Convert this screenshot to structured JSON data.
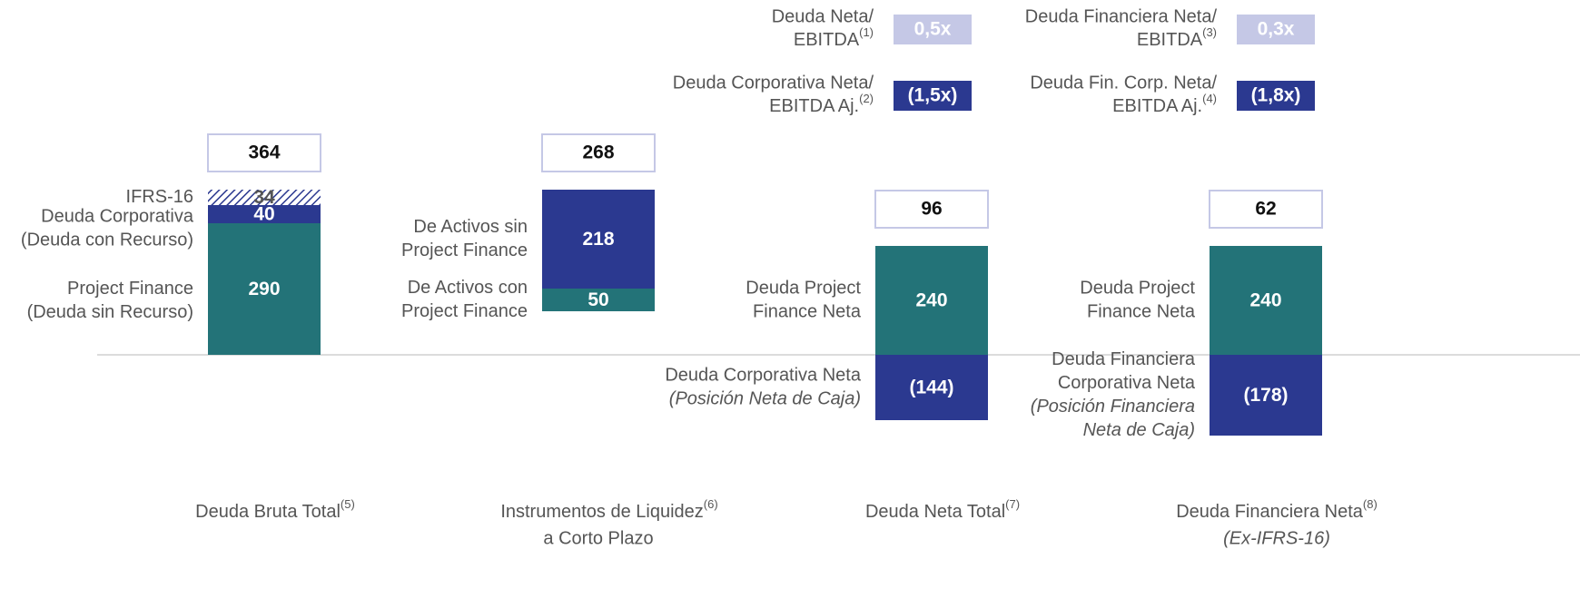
{
  "chart_data": {
    "type": "stacked_bar",
    "ratios": [
      {
        "label": [
          "Deuda Neta/",
          "EBITDA"
        ],
        "note": "(1)",
        "value": "0,5x",
        "color": "#c5c8e6"
      },
      {
        "label": [
          "Deuda Financiera Neta/",
          "EBITDA"
        ],
        "note": "(3)",
        "value": "0,3x",
        "color": "#c5c8e6"
      },
      {
        "label": [
          "Deuda Corporativa Neta/",
          "EBITDA Aj."
        ],
        "note": "(2)",
        "value": "(1,5x)",
        "color": "#2b3990"
      },
      {
        "label": [
          "Deuda Fin. Corp. Neta/",
          "EBITDA Aj."
        ],
        "note": "(4)",
        "value": "(1,8x)",
        "color": "#2b3990"
      }
    ],
    "columns": [
      {
        "label": [
          "Deuda Bruta Total"
        ],
        "note": "(5)",
        "total": 364,
        "segments": [
          {
            "name": [
              "Project Finance",
              "(Deuda sin Recurso)"
            ],
            "value": 290,
            "color": "#237378"
          },
          {
            "name": [
              "Deuda Corporativa",
              "(Deuda con Recurso)"
            ],
            "value": 40,
            "color": "#2b3990"
          },
          {
            "name": [
              "IFRS-16"
            ],
            "value": 34,
            "color": "#2b3990",
            "pattern": "hatch"
          }
        ]
      },
      {
        "label": [
          "Instrumentos de Liquidez",
          "a Corto Plazo"
        ],
        "note": "(6)",
        "total": 268,
        "segments": [
          {
            "name": [
              "De Activos con",
              "Project Finance"
            ],
            "value": 50,
            "color": "#237378"
          },
          {
            "name": [
              "De Activos sin",
              "Project Finance"
            ],
            "value": 218,
            "color": "#2b3990"
          }
        ]
      },
      {
        "label": [
          "Deuda Neta Total"
        ],
        "note": "(7)",
        "total": 96,
        "segments": [
          {
            "name": [
              "Deuda Project",
              "Finance Neta"
            ],
            "value": 240,
            "color": "#237378"
          },
          {
            "name": [
              "Deuda Corporativa Neta"
            ],
            "italic": [
              "(Posición Neta de Caja)"
            ],
            "value": -144,
            "value_label": "(144)",
            "color": "#2b3990"
          }
        ]
      },
      {
        "label": [
          "Deuda Financiera Neta"
        ],
        "note": "(8)",
        "sublabel": "(Ex-IFRS-16)",
        "total": 62,
        "segments": [
          {
            "name": [
              "Deuda Project",
              "Finance Neta"
            ],
            "value": 240,
            "color": "#237378"
          },
          {
            "name": [
              "Deuda Financiera",
              "Corporativa Neta"
            ],
            "italic": [
              "(Posición Financiera",
              "Neta de Caja)"
            ],
            "value": -178,
            "value_label": "(178)",
            "color": "#2b3990"
          }
        ]
      }
    ]
  }
}
